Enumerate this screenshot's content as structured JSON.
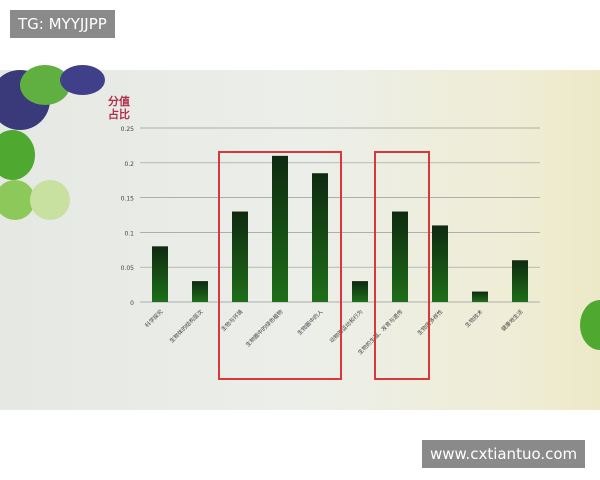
{
  "watermark_top": "TG: MYYJJPP",
  "watermark_bottom": "www.cxtiantuo.com",
  "chart_data": {
    "type": "bar",
    "ylabel": "分值占比",
    "ylim": [
      0,
      0.25
    ],
    "yticks": [
      "0",
      "0.05",
      "0.1",
      "0.15",
      "0.2",
      "0.25"
    ],
    "grid": true,
    "categories": [
      "科学探究",
      "生物体的结构层次",
      "生物与环境",
      "生物圈中的绿色植物",
      "生物圈中的人",
      "动物的运动和行为",
      "生物的生殖、发育与遗传",
      "生物的多样性",
      "生物技术",
      "健康地生活"
    ],
    "values": [
      0.08,
      0.03,
      0.13,
      0.21,
      0.185,
      0.03,
      0.13,
      0.11,
      0.015,
      0.06
    ],
    "bar_color": "#1f6e1a",
    "highlight_box_color": "#d8383c"
  }
}
